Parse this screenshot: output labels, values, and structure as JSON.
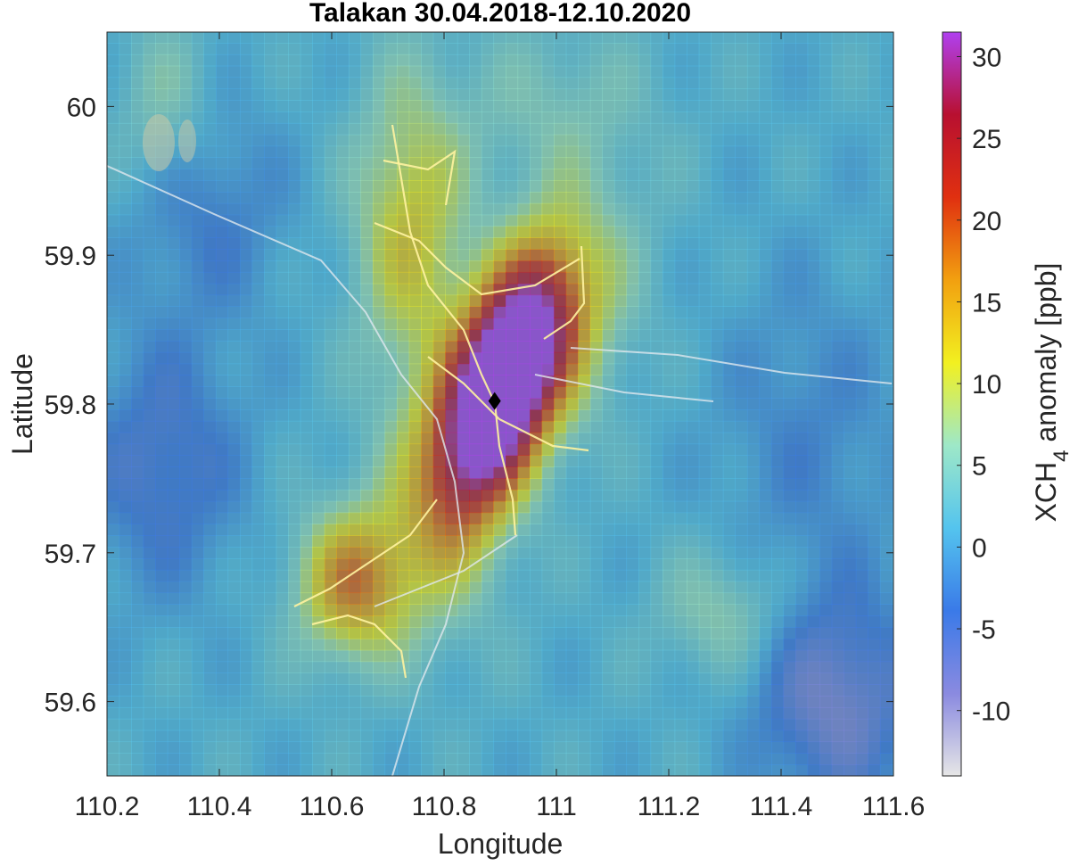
{
  "chart_data": {
    "type": "heatmap",
    "title": "Talakan 30.04.2018-12.10.2020",
    "xlabel": "Longitude",
    "ylabel": "Latitude",
    "colorbar_label_main": "XCH",
    "colorbar_label_sub": "4",
    "colorbar_label_rest": " anomaly [ppb]",
    "xlim": [
      110.2,
      111.6
    ],
    "ylim": [
      59.55,
      60.05
    ],
    "clim": [
      -14,
      31.5
    ],
    "xticks": [
      110.2,
      110.4,
      110.6,
      110.8,
      111.0,
      111.2,
      111.4,
      111.6
    ],
    "xtick_labels": [
      "110.2",
      "110.4",
      "110.6",
      "110.8",
      "111",
      "111.2",
      "111.4",
      "111.6"
    ],
    "yticks": [
      59.6,
      59.7,
      59.8,
      59.9,
      60.0
    ],
    "ytick_labels": [
      "59.6",
      "59.7",
      "59.8",
      "59.9",
      "60"
    ],
    "cticks": [
      -10,
      -5,
      0,
      5,
      10,
      15,
      20,
      25,
      30
    ],
    "ctick_labels": [
      "-10",
      "-5",
      "0",
      "5",
      "10",
      "15",
      "20",
      "25",
      "30"
    ],
    "colormap": [
      "#e6e6e6",
      "#8a8ae0",
      "#3a7ae8",
      "#54c4ee",
      "#9ee8c8",
      "#f2f020",
      "#f2a010",
      "#e03010",
      "#b81030",
      "#b040f0"
    ],
    "background_color": "#4a7a8a",
    "marker": {
      "shape": "diamond",
      "lon": 110.89,
      "lat": 59.802,
      "color": "#000000"
    },
    "grid_resolution": {
      "dlon": 0.0215,
      "dlat": 0.0077
    },
    "anomaly_features": [
      {
        "lon": 110.9,
        "lat": 59.81,
        "peak": 34,
        "sx": 0.085,
        "sy": 0.042,
        "rot": 0.55
      },
      {
        "lon": 110.96,
        "lat": 59.84,
        "peak": 14,
        "sx": 0.11,
        "sy": 0.05,
        "rot": 0.3
      },
      {
        "lon": 110.74,
        "lat": 59.92,
        "peak": 11,
        "sx": 0.07,
        "sy": 0.07,
        "rot": 0
      },
      {
        "lon": 110.64,
        "lat": 59.68,
        "peak": 16,
        "sx": 0.07,
        "sy": 0.035,
        "rot": 0
      },
      {
        "lon": 110.8,
        "lat": 59.73,
        "peak": 7,
        "sx": 0.08,
        "sy": 0.06,
        "rot": 0
      },
      {
        "lon": 111.3,
        "lat": 59.66,
        "peak": 6,
        "sx": 0.08,
        "sy": 0.03,
        "rot": 0
      },
      {
        "lon": 110.3,
        "lat": 60.0,
        "peak": 5,
        "sx": 0.06,
        "sy": 0.04,
        "rot": 0
      },
      {
        "lon": 111.0,
        "lat": 60.0,
        "peak": 4,
        "sx": 0.12,
        "sy": 0.04,
        "rot": 0
      },
      {
        "lon": 111.5,
        "lat": 59.6,
        "peak": -10,
        "sx": 0.1,
        "sy": 0.05,
        "rot": 0
      },
      {
        "lon": 110.3,
        "lat": 59.76,
        "peak": -7,
        "sx": 0.1,
        "sy": 0.06,
        "rot": 0
      },
      {
        "lon": 110.38,
        "lat": 59.93,
        "peak": -5,
        "sx": 0.1,
        "sy": 0.05,
        "rot": 0
      },
      {
        "lon": 111.45,
        "lat": 59.78,
        "peak": -4,
        "sx": 0.12,
        "sy": 0.08,
        "rot": 0
      }
    ],
    "baseline": 1.5,
    "grid": false
  }
}
